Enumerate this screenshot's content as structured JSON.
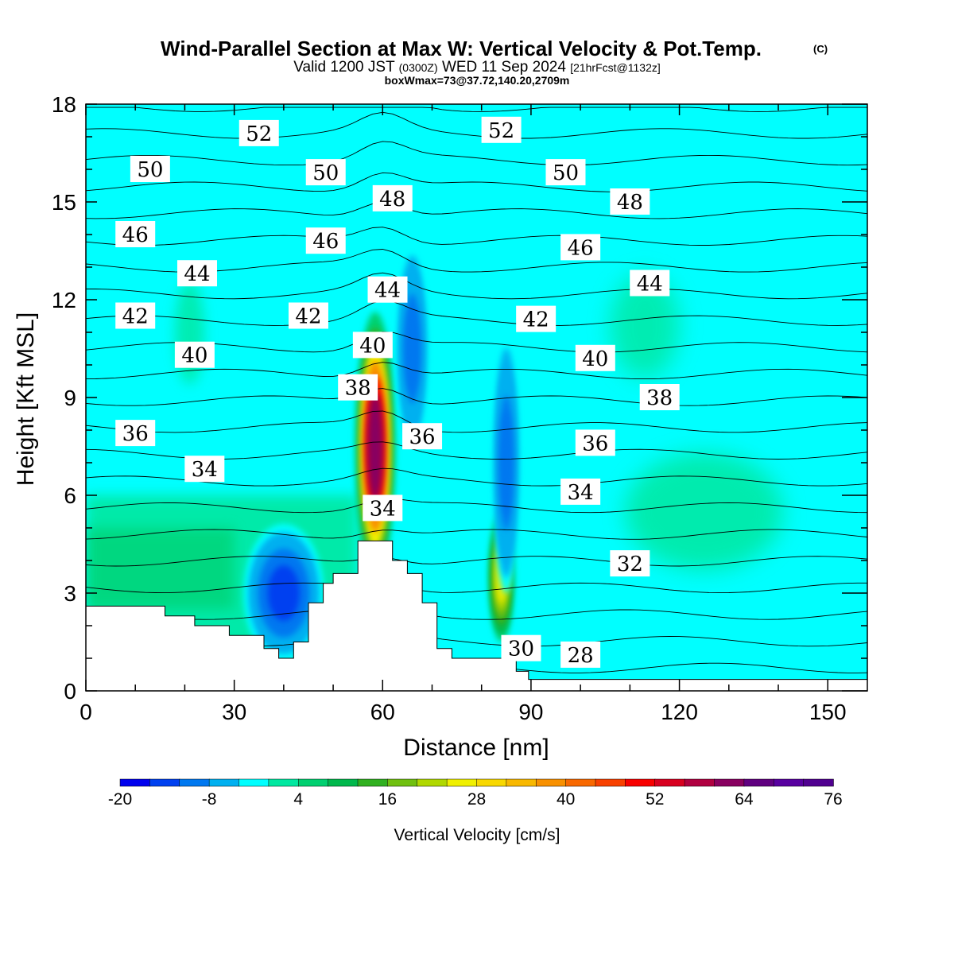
{
  "chart_data": {
    "type": "heatmap",
    "title": "Wind-Parallel Section at Max W: Vertical Velocity & Pot.Temp.",
    "title_mark": "(C)",
    "subtitle": {
      "valid": "Valid 1200 JST",
      "utc": "(0300Z)",
      "date": "WED 11 Sep 2024",
      "forecast": "[21hrFcst@1132z]"
    },
    "box_info": "boxWmax=73@37.72,140.20,2709m",
    "xlabel": "Distance [nm]",
    "ylabel": "Height [Kft MSL]",
    "xlim": [
      0,
      158
    ],
    "ylim": [
      0,
      18
    ],
    "x_ticks": [
      0,
      30,
      60,
      90,
      120,
      150
    ],
    "y_ticks": [
      0,
      3,
      6,
      9,
      12,
      15,
      18
    ],
    "grid": false,
    "colorbar": {
      "title": "Vertical Velocity [cm/s]",
      "labels": [
        "-20",
        "-8",
        "4",
        "16",
        "28",
        "40",
        "52",
        "64",
        "76"
      ],
      "bounds": [
        -20,
        76
      ],
      "step": 4,
      "colors": [
        "#0000ee",
        "#0040f0",
        "#0078f0",
        "#00b0f0",
        "#00ffff",
        "#00e8a0",
        "#00d070",
        "#00b84c",
        "#30b020",
        "#70c010",
        "#b0d800",
        "#f0f000",
        "#f8d800",
        "#f8b800",
        "#f89000",
        "#f86800",
        "#f84000",
        "#f80000",
        "#d80020",
        "#b00040",
        "#880060",
        "#600080",
        "#5800a0",
        "#500090"
      ]
    },
    "w_cells": [
      {
        "name": "updraft-core-58nm",
        "x": 58.5,
        "y": 7.5,
        "w_cm_s": 73
      },
      {
        "name": "updraft-core-84nm",
        "x": 84,
        "y": 3.5,
        "w_cm_s": 30
      },
      {
        "name": "downdraft-40nm",
        "x": 40,
        "y": 3.0,
        "w_cm_s": -16
      },
      {
        "name": "downdraft-66nm",
        "x": 66,
        "y": 10.5,
        "w_cm_s": -12
      },
      {
        "name": "downdraft-85nm",
        "x": 85,
        "y": 7.0,
        "w_cm_s": -12
      }
    ],
    "terrain": [
      [
        0,
        2.6
      ],
      [
        16,
        2.6
      ],
      [
        16,
        2.3
      ],
      [
        22,
        2.3
      ],
      [
        22,
        2.0
      ],
      [
        29,
        2.0
      ],
      [
        29,
        1.7
      ],
      [
        36,
        1.7
      ],
      [
        36,
        1.3
      ],
      [
        39,
        1.3
      ],
      [
        39,
        1.0
      ],
      [
        42,
        1.0
      ],
      [
        42,
        1.5
      ],
      [
        45,
        1.5
      ],
      [
        45,
        2.7
      ],
      [
        48,
        2.7
      ],
      [
        48,
        3.3
      ],
      [
        50,
        3.3
      ],
      [
        50,
        3.6
      ],
      [
        55,
        3.6
      ],
      [
        55,
        4.6
      ],
      [
        62,
        4.6
      ],
      [
        62,
        4.0
      ],
      [
        65,
        4.0
      ],
      [
        65,
        3.6
      ],
      [
        68,
        3.6
      ],
      [
        68,
        2.7
      ],
      [
        71,
        2.7
      ],
      [
        71,
        1.3
      ],
      [
        74,
        1.3
      ],
      [
        74,
        1.0
      ],
      [
        87,
        1.0
      ],
      [
        87,
        0.6
      ],
      [
        89.5,
        0.6
      ],
      [
        89.5,
        0.35
      ],
      [
        158,
        0.35
      ]
    ],
    "theta_labels": [
      {
        "text": "52",
        "x": 35,
        "y": 17.1
      },
      {
        "text": "52",
        "x": 84,
        "y": 17.2
      },
      {
        "text": "50",
        "x": 13,
        "y": 16.0
      },
      {
        "text": "50",
        "x": 48.5,
        "y": 15.9
      },
      {
        "text": "50",
        "x": 97,
        "y": 15.9
      },
      {
        "text": "48",
        "x": 62,
        "y": 15.1
      },
      {
        "text": "48",
        "x": 110,
        "y": 15.0
      },
      {
        "text": "46",
        "x": 10,
        "y": 14.0
      },
      {
        "text": "46",
        "x": 48.5,
        "y": 13.8
      },
      {
        "text": "46",
        "x": 100,
        "y": 13.6
      },
      {
        "text": "44",
        "x": 22.5,
        "y": 12.8
      },
      {
        "text": "44",
        "x": 61,
        "y": 12.3
      },
      {
        "text": "44",
        "x": 114,
        "y": 12.5
      },
      {
        "text": "42",
        "x": 10,
        "y": 11.5
      },
      {
        "text": "42",
        "x": 45,
        "y": 11.5
      },
      {
        "text": "42",
        "x": 91,
        "y": 11.4
      },
      {
        "text": "40",
        "x": 22,
        "y": 10.3
      },
      {
        "text": "40",
        "x": 58,
        "y": 10.6
      },
      {
        "text": "40",
        "x": 103,
        "y": 10.2
      },
      {
        "text": "38",
        "x": 55,
        "y": 9.3
      },
      {
        "text": "38",
        "x": 116,
        "y": 9.0
      },
      {
        "text": "36",
        "x": 10,
        "y": 7.9
      },
      {
        "text": "36",
        "x": 68,
        "y": 7.8
      },
      {
        "text": "36",
        "x": 103,
        "y": 7.6
      },
      {
        "text": "34",
        "x": 24,
        "y": 6.8
      },
      {
        "text": "34",
        "x": 60,
        "y": 5.6
      },
      {
        "text": "34",
        "x": 100,
        "y": 6.1
      },
      {
        "text": "32",
        "x": 110,
        "y": 3.9
      },
      {
        "text": "30",
        "x": 88,
        "y": 1.3
      },
      {
        "text": "28",
        "x": 100,
        "y": 1.1
      }
    ]
  }
}
